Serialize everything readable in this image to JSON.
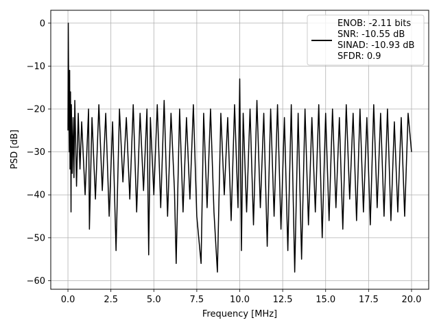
{
  "chart_data": {
    "type": "line",
    "xlabel": "Frequency [MHz]",
    "ylabel": "PSD [dB]",
    "xlim": [
      -1,
      21
    ],
    "ylim": [
      -62,
      3
    ],
    "x_ticks": [
      0,
      2.5,
      5,
      7.5,
      10,
      12.5,
      15,
      17.5,
      20
    ],
    "x_tick_labels": [
      "0.0",
      "2.5",
      "5.0",
      "7.5",
      "10.0",
      "12.5",
      "15.0",
      "17.5",
      "20.0"
    ],
    "y_ticks": [
      0,
      -10,
      -20,
      -30,
      -40,
      -50,
      -60
    ],
    "y_tick_labels": [
      "0",
      "−10",
      "−20",
      "−30",
      "−40",
      "−50",
      "−60"
    ],
    "grid": true,
    "legend_position": "top-right",
    "series": [
      {
        "color": "#000000",
        "legend_lines": [
          "ENOB: -2.11 bits",
          "SNR: -10.55 dB",
          "SINAD: -10.93 dB",
          "SFDR: 0.9"
        ],
        "x": [
          0.0,
          0.02,
          0.05,
          0.08,
          0.1,
          0.12,
          0.15,
          0.18,
          0.2,
          0.25,
          0.3,
          0.35,
          0.4,
          0.5,
          0.6,
          0.7,
          0.8,
          1.0,
          1.2,
          1.25,
          1.4,
          1.6,
          1.8,
          2.0,
          2.2,
          2.4,
          2.6,
          2.8,
          3.0,
          3.2,
          3.4,
          3.6,
          3.8,
          4.0,
          4.2,
          4.4,
          4.6,
          4.7,
          4.8,
          5.0,
          5.2,
          5.4,
          5.6,
          5.8,
          6.0,
          6.2,
          6.3,
          6.5,
          6.7,
          6.9,
          7.1,
          7.3,
          7.5,
          7.75,
          7.9,
          8.1,
          8.3,
          8.5,
          8.7,
          8.9,
          9.1,
          9.3,
          9.5,
          9.7,
          9.9,
          10.0,
          10.1,
          10.2,
          10.4,
          10.6,
          10.8,
          11.0,
          11.2,
          11.4,
          11.6,
          11.8,
          12.0,
          12.2,
          12.4,
          12.6,
          12.8,
          13.0,
          13.2,
          13.4,
          13.6,
          13.8,
          14.0,
          14.2,
          14.4,
          14.6,
          14.8,
          15.0,
          15.2,
          15.4,
          15.6,
          15.8,
          16.0,
          16.2,
          16.4,
          16.6,
          16.8,
          17.0,
          17.2,
          17.4,
          17.6,
          17.8,
          18.0,
          18.2,
          18.4,
          18.6,
          18.8,
          19.0,
          19.2,
          19.4,
          19.6,
          19.8,
          20.0
        ],
        "y": [
          -25,
          0,
          -20,
          -30,
          -11,
          -34,
          -16,
          -44,
          -19,
          -35,
          -22,
          -36,
          -18,
          -38,
          -21,
          -34,
          -23,
          -40,
          -20,
          -48,
          -22,
          -41,
          -19,
          -39,
          -21,
          -45,
          -23,
          -53,
          -20,
          -37,
          -22,
          -41,
          -19,
          -44,
          -21,
          -39,
          -20,
          -54,
          -22,
          -40,
          -19,
          -43,
          -18,
          -45,
          -21,
          -39,
          -56,
          -20,
          -44,
          -22,
          -41,
          -19,
          -45,
          -56,
          -21,
          -43,
          -20,
          -44,
          -58,
          -21,
          -40,
          -22,
          -46,
          -19,
          -43,
          -13,
          -53,
          -21,
          -44,
          -20,
          -47,
          -18,
          -43,
          -21,
          -52,
          -20,
          -45,
          -19,
          -48,
          -22,
          -53,
          -19,
          -58,
          -21,
          -55,
          -20,
          -47,
          -22,
          -44,
          -19,
          -50,
          -21,
          -46,
          -20,
          -43,
          -22,
          -48,
          -19,
          -41,
          -21,
          -46,
          -20,
          -44,
          -22,
          -47,
          -19,
          -43,
          -21,
          -45,
          -20,
          -46,
          -23,
          -44,
          -22,
          -45,
          -21,
          -30
        ]
      }
    ]
  }
}
